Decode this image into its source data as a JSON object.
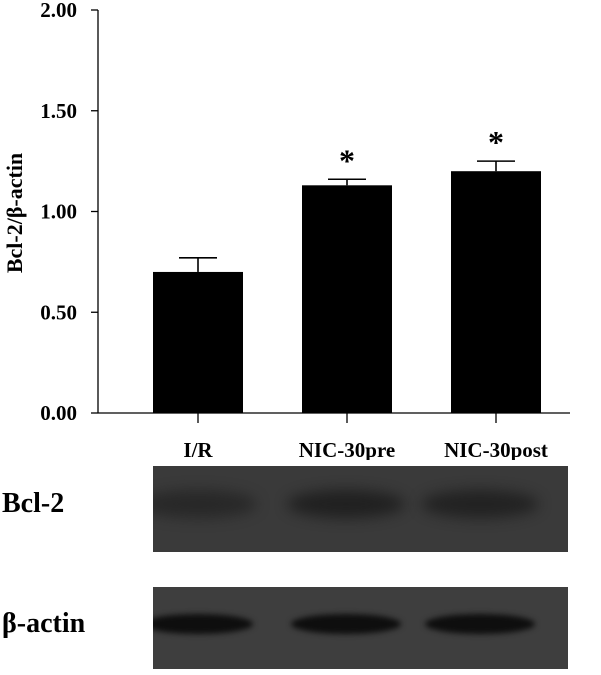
{
  "chart_data": {
    "type": "bar",
    "ylabel": "Bcl-2/β-actin",
    "ylim": [
      0,
      2
    ],
    "yticks": [
      "0.00",
      "0.50",
      "1.00",
      "1.50",
      "2.00"
    ],
    "categories": [
      "I/R",
      "NIC-30pre",
      "NIC-30post"
    ],
    "values": [
      0.7,
      1.13,
      1.2
    ],
    "errors": [
      0.07,
      0.03,
      0.05
    ],
    "annotations": [
      "",
      "*",
      "*"
    ],
    "bar_color": "#000000"
  },
  "blots": [
    {
      "label": "Bcl-2",
      "background": "#3a3a3a",
      "band_color": "#1c1c1c",
      "intensity": [
        0.6,
        0.85,
        0.8
      ]
    },
    {
      "label": "β-actin",
      "background": "#3e3e3e",
      "band_color": "#0e0e0e",
      "intensity": [
        1.0,
        1.0,
        1.0
      ]
    }
  ]
}
